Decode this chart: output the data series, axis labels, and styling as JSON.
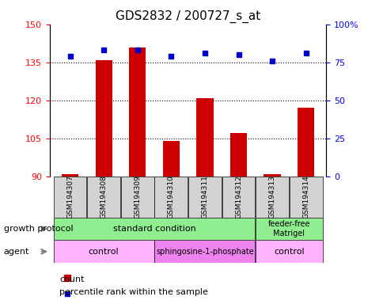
{
  "title": "GDS2832 / 200727_s_at",
  "samples": [
    "GSM194307",
    "GSM194308",
    "GSM194309",
    "GSM194310",
    "GSM194311",
    "GSM194312",
    "GSM194313",
    "GSM194314"
  ],
  "counts": [
    91,
    136,
    141,
    104,
    121,
    107,
    91,
    117
  ],
  "percentile_ranks": [
    79,
    83,
    83,
    79,
    81,
    80,
    76,
    81
  ],
  "bar_color": "#cc0000",
  "dot_color": "#0000cc",
  "left_ylim": [
    90,
    150
  ],
  "left_yticks": [
    90,
    105,
    120,
    135,
    150
  ],
  "right_ylim": [
    0,
    100
  ],
  "right_yticks": [
    0,
    25,
    50,
    75,
    100
  ],
  "right_yticklabels": [
    "0",
    "25",
    "50",
    "75",
    "100%"
  ],
  "growth_protocol_groups": [
    {
      "label": "standard condition",
      "start": 0,
      "end": 6,
      "color": "#b3ffb3"
    },
    {
      "label": "feeder-free\nMatrigel",
      "start": 6,
      "end": 8,
      "color": "#b3ffb3"
    }
  ],
  "agent_groups": [
    {
      "label": "control",
      "start": 0,
      "end": 3,
      "color": "#ffb3ff"
    },
    {
      "label": "sphingosine-1-phosphate",
      "start": 3,
      "end": 6,
      "color": "#ff66ff"
    },
    {
      "label": "control",
      "start": 6,
      "end": 8,
      "color": "#ffb3ff"
    }
  ],
  "legend_count_label": "count",
  "legend_percentile_label": "percentile rank within the sample",
  "growth_protocol_label": "growth protocol",
  "agent_label": "agent"
}
